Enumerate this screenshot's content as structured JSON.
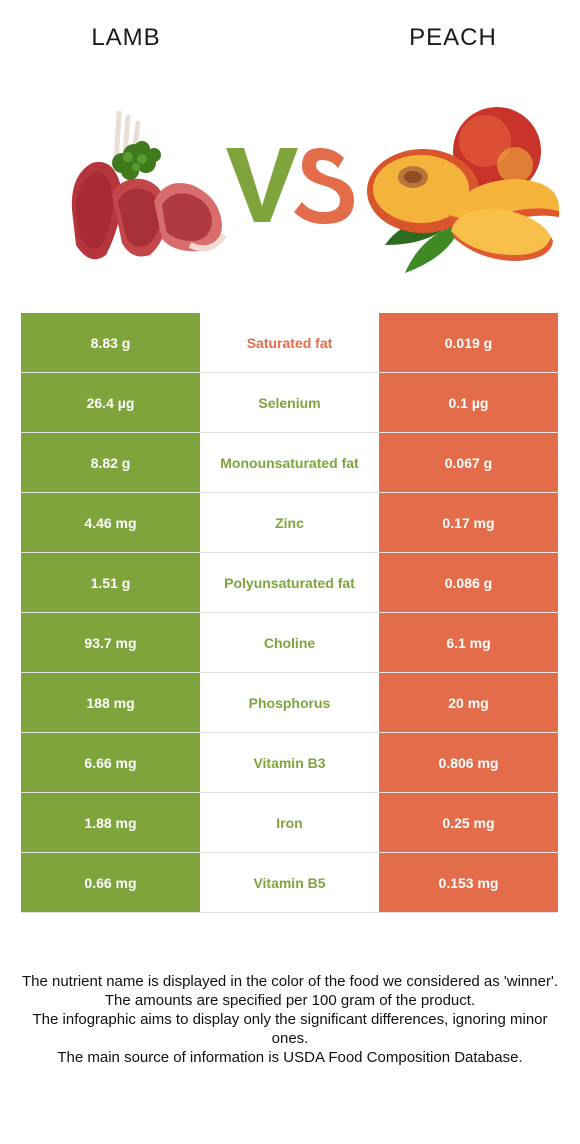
{
  "header": {
    "left_title": "LAMB",
    "right_title": "PEACH",
    "vs": "VS"
  },
  "colors": {
    "lamb": "#7fa43c",
    "peach": "#e36c4a",
    "vs_v": "#7fa43c",
    "vs_s": "#e36c4a"
  },
  "images": {
    "left": "lamb-chops-with-parsley",
    "right": "peach-with-slices-and-leaf"
  },
  "rows": [
    {
      "left": "8.83 g",
      "nutrient": "Saturated fat",
      "right": "0.019 g",
      "winner": "peach"
    },
    {
      "left": "26.4 µg",
      "nutrient": "Selenium",
      "right": "0.1 µg",
      "winner": "lamb"
    },
    {
      "left": "8.82 g",
      "nutrient": "Monounsaturated fat",
      "right": "0.067 g",
      "winner": "lamb"
    },
    {
      "left": "4.46 mg",
      "nutrient": "Zinc",
      "right": "0.17 mg",
      "winner": "lamb"
    },
    {
      "left": "1.51 g",
      "nutrient": "Polyunsaturated fat",
      "right": "0.086 g",
      "winner": "lamb"
    },
    {
      "left": "93.7 mg",
      "nutrient": "Choline",
      "right": "6.1 mg",
      "winner": "lamb"
    },
    {
      "left": "188 mg",
      "nutrient": "Phosphorus",
      "right": "20 mg",
      "winner": "lamb"
    },
    {
      "left": "6.66 mg",
      "nutrient": "Vitamin B3",
      "right": "0.806 mg",
      "winner": "lamb"
    },
    {
      "left": "1.88 mg",
      "nutrient": "Iron",
      "right": "0.25 mg",
      "winner": "lamb"
    },
    {
      "left": "0.66 mg",
      "nutrient": "Vitamin B5",
      "right": "0.153 mg",
      "winner": "lamb"
    }
  ],
  "footer": [
    "The nutrient name is displayed in the color of the food we considered as 'winner'.",
    "The amounts are specified per 100 gram of the product.",
    "The infographic aims to display only the significant differences, ignoring minor ones.",
    "The main source of information is USDA Food Composition Database."
  ]
}
